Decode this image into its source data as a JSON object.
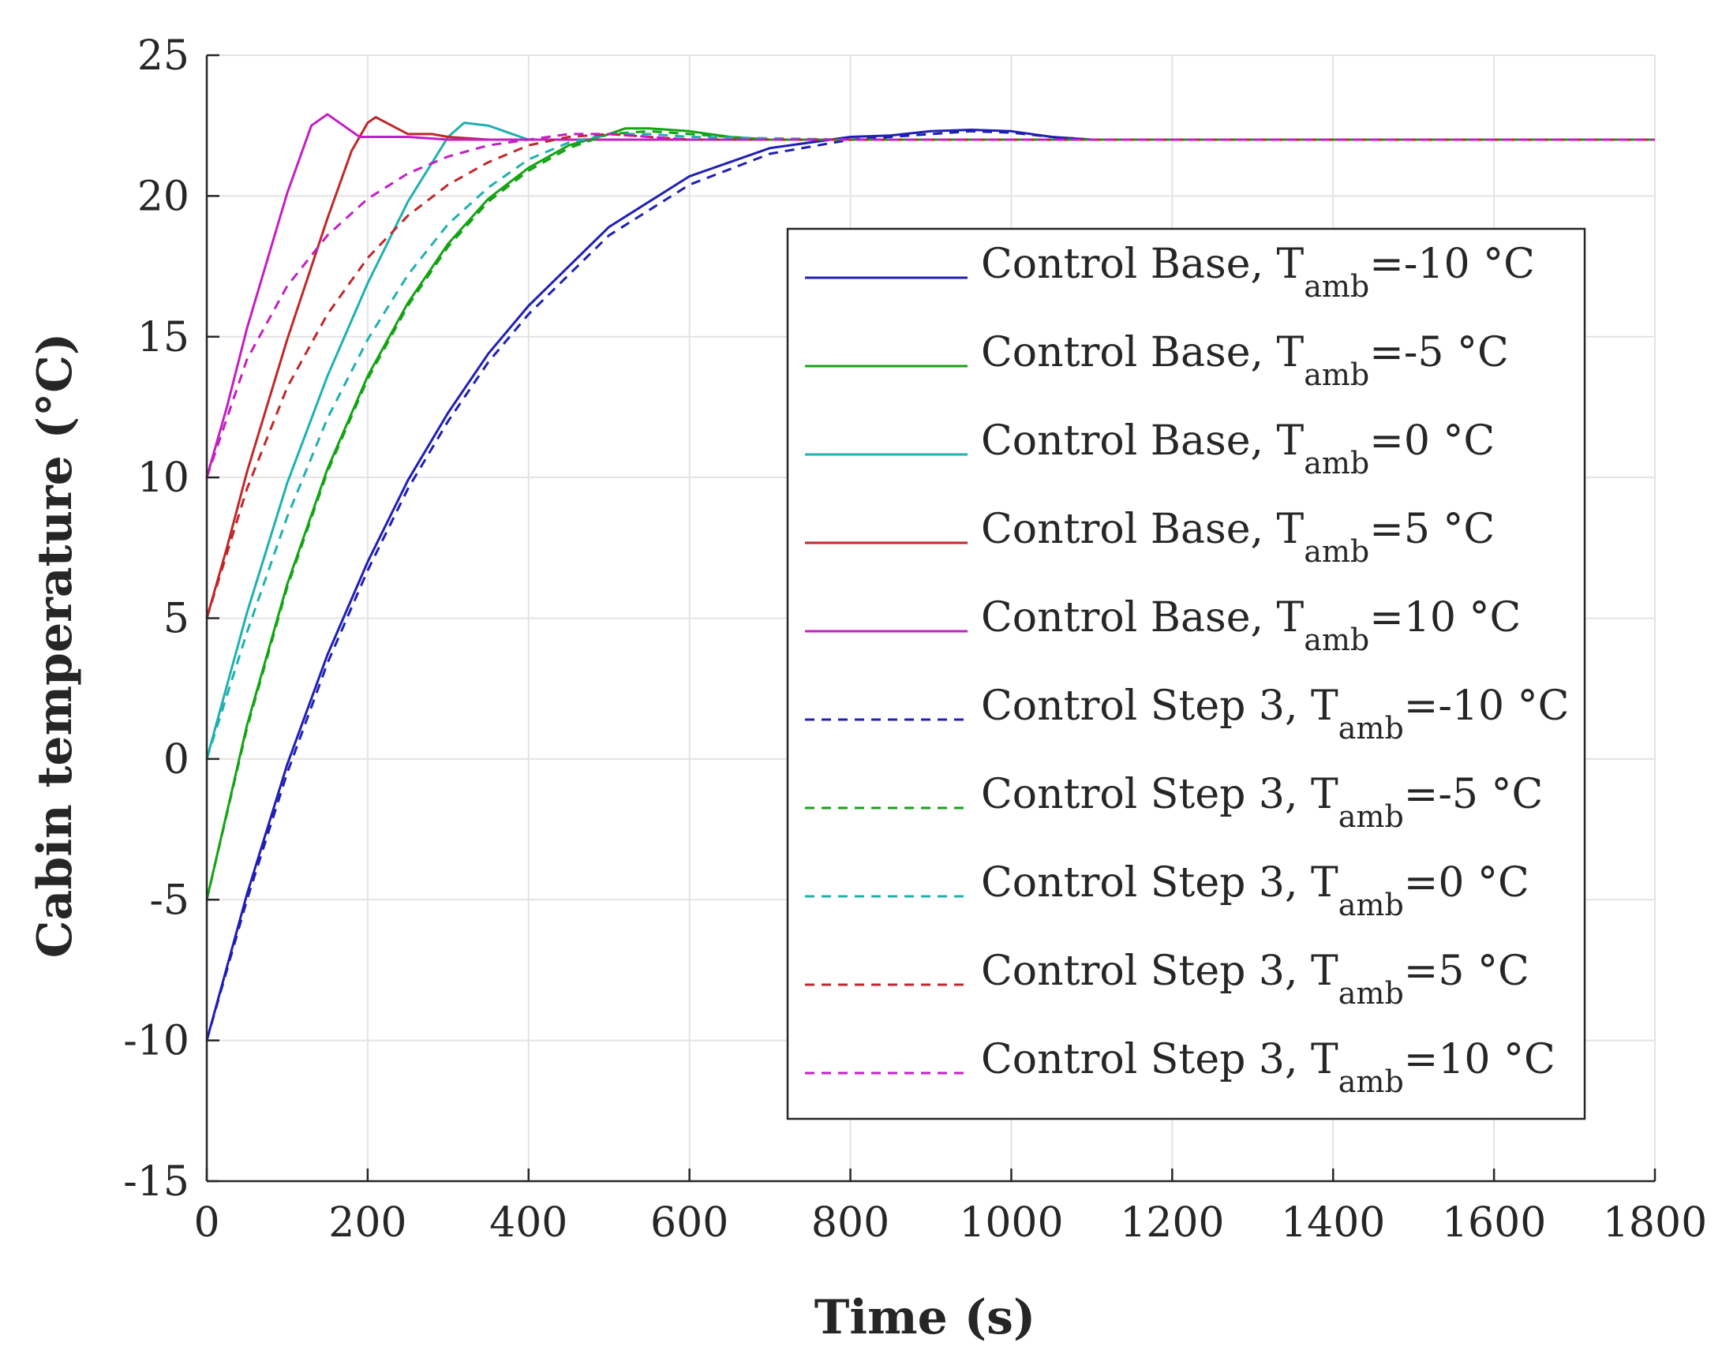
{
  "chart_data": {
    "type": "line",
    "title": "",
    "xlabel": "Time (s)",
    "ylabel": "Cabin temperature (°C)",
    "xlim": [
      0,
      1800
    ],
    "ylim": [
      -15,
      25
    ],
    "xticks": [
      0,
      200,
      400,
      600,
      800,
      1000,
      1200,
      1400,
      1600,
      1800
    ],
    "yticks": [
      -15,
      -10,
      -5,
      0,
      5,
      10,
      15,
      20,
      25
    ],
    "grid": true,
    "legend_position": "right",
    "series": [
      {
        "name": "Control Base, Tamb=-10 °C",
        "label_main": "Control Base, T",
        "label_sub": "amb",
        "label_tail": "=-10 °C",
        "color": "#1f1fb4",
        "dash": "solid",
        "x": [
          0,
          50,
          100,
          150,
          200,
          250,
          300,
          350,
          400,
          500,
          600,
          700,
          800,
          850,
          900,
          950,
          1000,
          1050,
          1100,
          1200,
          1400,
          1600,
          1800
        ],
        "y": [
          -10,
          -4.8,
          -0.2,
          3.7,
          7.0,
          9.9,
          12.3,
          14.4,
          16.1,
          18.9,
          20.7,
          21.7,
          22.1,
          22.15,
          22.3,
          22.35,
          22.3,
          22.1,
          22.0,
          22.0,
          22.0,
          22.0,
          22.0
        ]
      },
      {
        "name": "Control Base, Tamb=-5 °C",
        "label_main": "Control Base, T",
        "label_sub": "amb",
        "label_tail": "=-5 °C",
        "color": "#14a314",
        "dash": "solid",
        "x": [
          0,
          50,
          100,
          150,
          200,
          250,
          300,
          350,
          400,
          450,
          500,
          520,
          550,
          600,
          650,
          700,
          800,
          1000,
          1200,
          1400,
          1600,
          1800
        ],
        "y": [
          -5,
          1.2,
          6.2,
          10.3,
          13.6,
          16.2,
          18.3,
          19.9,
          21.0,
          21.8,
          22.2,
          22.4,
          22.4,
          22.3,
          22.1,
          22.0,
          22.0,
          22.0,
          22.0,
          22.0,
          22.0,
          22.0
        ]
      },
      {
        "name": "Control Base, Tamb=0 °C",
        "label_main": "Control Base, T",
        "label_sub": "amb",
        "label_tail": "=0 °C",
        "color": "#1fb0b0",
        "dash": "solid",
        "x": [
          0,
          25,
          50,
          100,
          150,
          200,
          250,
          300,
          320,
          350,
          380,
          400,
          450,
          500,
          600,
          800,
          1000,
          1200,
          1400,
          1600,
          1800
        ],
        "y": [
          0,
          2.6,
          5.2,
          9.8,
          13.6,
          16.9,
          19.8,
          22.1,
          22.6,
          22.5,
          22.2,
          22.0,
          22.0,
          22.0,
          22.0,
          22.0,
          22.0,
          22.0,
          22.0,
          22.0,
          22.0
        ]
      },
      {
        "name": "Control Base, Tamb=5 °C",
        "label_main": "Control Base, T",
        "label_sub": "amb",
        "label_tail": "=5 °C",
        "color": "#c0282a",
        "dash": "solid",
        "x": [
          0,
          25,
          50,
          100,
          150,
          180,
          200,
          210,
          230,
          250,
          280,
          300,
          350,
          400,
          600,
          800,
          1000,
          1200,
          1400,
          1600,
          1800
        ],
        "y": [
          5,
          7.5,
          10.2,
          14.9,
          19.2,
          21.6,
          22.6,
          22.8,
          22.5,
          22.2,
          22.2,
          22.1,
          22.0,
          22.0,
          22.0,
          22.0,
          22.0,
          22.0,
          22.0,
          22.0,
          22.0
        ]
      },
      {
        "name": "Control Base, Tamb=10 °C",
        "label_main": "Control Base, T",
        "label_sub": "amb",
        "label_tail": "=10 °C",
        "color": "#c41ec4",
        "dash": "solid",
        "x": [
          0,
          25,
          50,
          100,
          130,
          150,
          170,
          190,
          200,
          250,
          300,
          400,
          600,
          800,
          1000,
          1200,
          1400,
          1600,
          1800
        ],
        "y": [
          10,
          12.5,
          15.3,
          20.1,
          22.5,
          22.9,
          22.5,
          22.1,
          22.1,
          22.1,
          22.0,
          22.0,
          22.0,
          22.0,
          22.0,
          22.0,
          22.0,
          22.0,
          22.0
        ]
      },
      {
        "name": "Control Step 3, Tamb=-10 °C",
        "label_main": "Control Step 3, T",
        "label_sub": "amb",
        "label_tail": "=-10 °C",
        "color": "#1f1fb4",
        "dash": "dashed",
        "x": [
          0,
          50,
          100,
          150,
          200,
          250,
          300,
          350,
          400,
          500,
          600,
          700,
          800,
          850,
          900,
          950,
          1000,
          1050,
          1100,
          1200,
          1400,
          1600,
          1800
        ],
        "y": [
          -10,
          -5.0,
          -0.5,
          3.4,
          6.7,
          9.6,
          12.0,
          14.1,
          15.8,
          18.6,
          20.4,
          21.5,
          22.0,
          22.1,
          22.2,
          22.3,
          22.25,
          22.1,
          22.0,
          22.0,
          22.0,
          22.0,
          22.0
        ]
      },
      {
        "name": "Control Step 3, Tamb=-5 °C",
        "label_main": "Control Step 3, T",
        "label_sub": "amb",
        "label_tail": "=-5 °C",
        "color": "#14a314",
        "dash": "dashed",
        "x": [
          0,
          50,
          100,
          150,
          200,
          250,
          300,
          350,
          400,
          450,
          500,
          550,
          600,
          700,
          800,
          1000,
          1200,
          1400,
          1600,
          1800
        ],
        "y": [
          -5,
          1.1,
          6.1,
          10.2,
          13.5,
          16.1,
          18.2,
          19.8,
          20.9,
          21.7,
          22.2,
          22.3,
          22.2,
          22.0,
          22.0,
          22.0,
          22.0,
          22.0,
          22.0,
          22.0
        ]
      },
      {
        "name": "Control Step 3, Tamb=0 °C",
        "label_main": "Control Step 3, T",
        "label_sub": "amb",
        "label_tail": "=0 °C",
        "color": "#1fb0b0",
        "dash": "dashed",
        "x": [
          0,
          50,
          100,
          150,
          200,
          250,
          300,
          350,
          400,
          450,
          500,
          550,
          600,
          800,
          1000,
          1200,
          1400,
          1600,
          1800
        ],
        "y": [
          0,
          4.5,
          8.6,
          12.1,
          14.9,
          17.2,
          19.0,
          20.3,
          21.3,
          21.9,
          22.2,
          22.2,
          22.1,
          22.0,
          22.0,
          22.0,
          22.0,
          22.0,
          22.0
        ]
      },
      {
        "name": "Control Step 3, Tamb=5 °C",
        "label_main": "Control Step 3, T",
        "label_sub": "amb",
        "label_tail": "=5 °C",
        "color": "#c0282a",
        "dash": "dashed",
        "x": [
          0,
          50,
          100,
          150,
          200,
          250,
          300,
          350,
          400,
          450,
          500,
          550,
          600,
          800,
          1000,
          1200,
          1400,
          1600,
          1800
        ],
        "y": [
          5,
          9.6,
          13.2,
          15.8,
          17.8,
          19.3,
          20.4,
          21.2,
          21.8,
          22.1,
          22.2,
          22.1,
          22.0,
          22.0,
          22.0,
          22.0,
          22.0,
          22.0,
          22.0
        ]
      },
      {
        "name": "Control Step 3, Tamb=10 °C",
        "label_main": "Control Step 3, T",
        "label_sub": "amb",
        "label_tail": "=10 °C",
        "color": "#c41ec4",
        "dash": "dashed",
        "x": [
          0,
          50,
          100,
          150,
          200,
          250,
          300,
          350,
          400,
          450,
          500,
          550,
          600,
          800,
          1000,
          1200,
          1400,
          1600,
          1800
        ],
        "y": [
          10,
          14.2,
          16.8,
          18.6,
          19.9,
          20.8,
          21.4,
          21.8,
          22.0,
          22.2,
          22.2,
          22.1,
          22.0,
          22.0,
          22.0,
          22.0,
          22.0,
          22.0,
          22.0
        ]
      }
    ]
  }
}
